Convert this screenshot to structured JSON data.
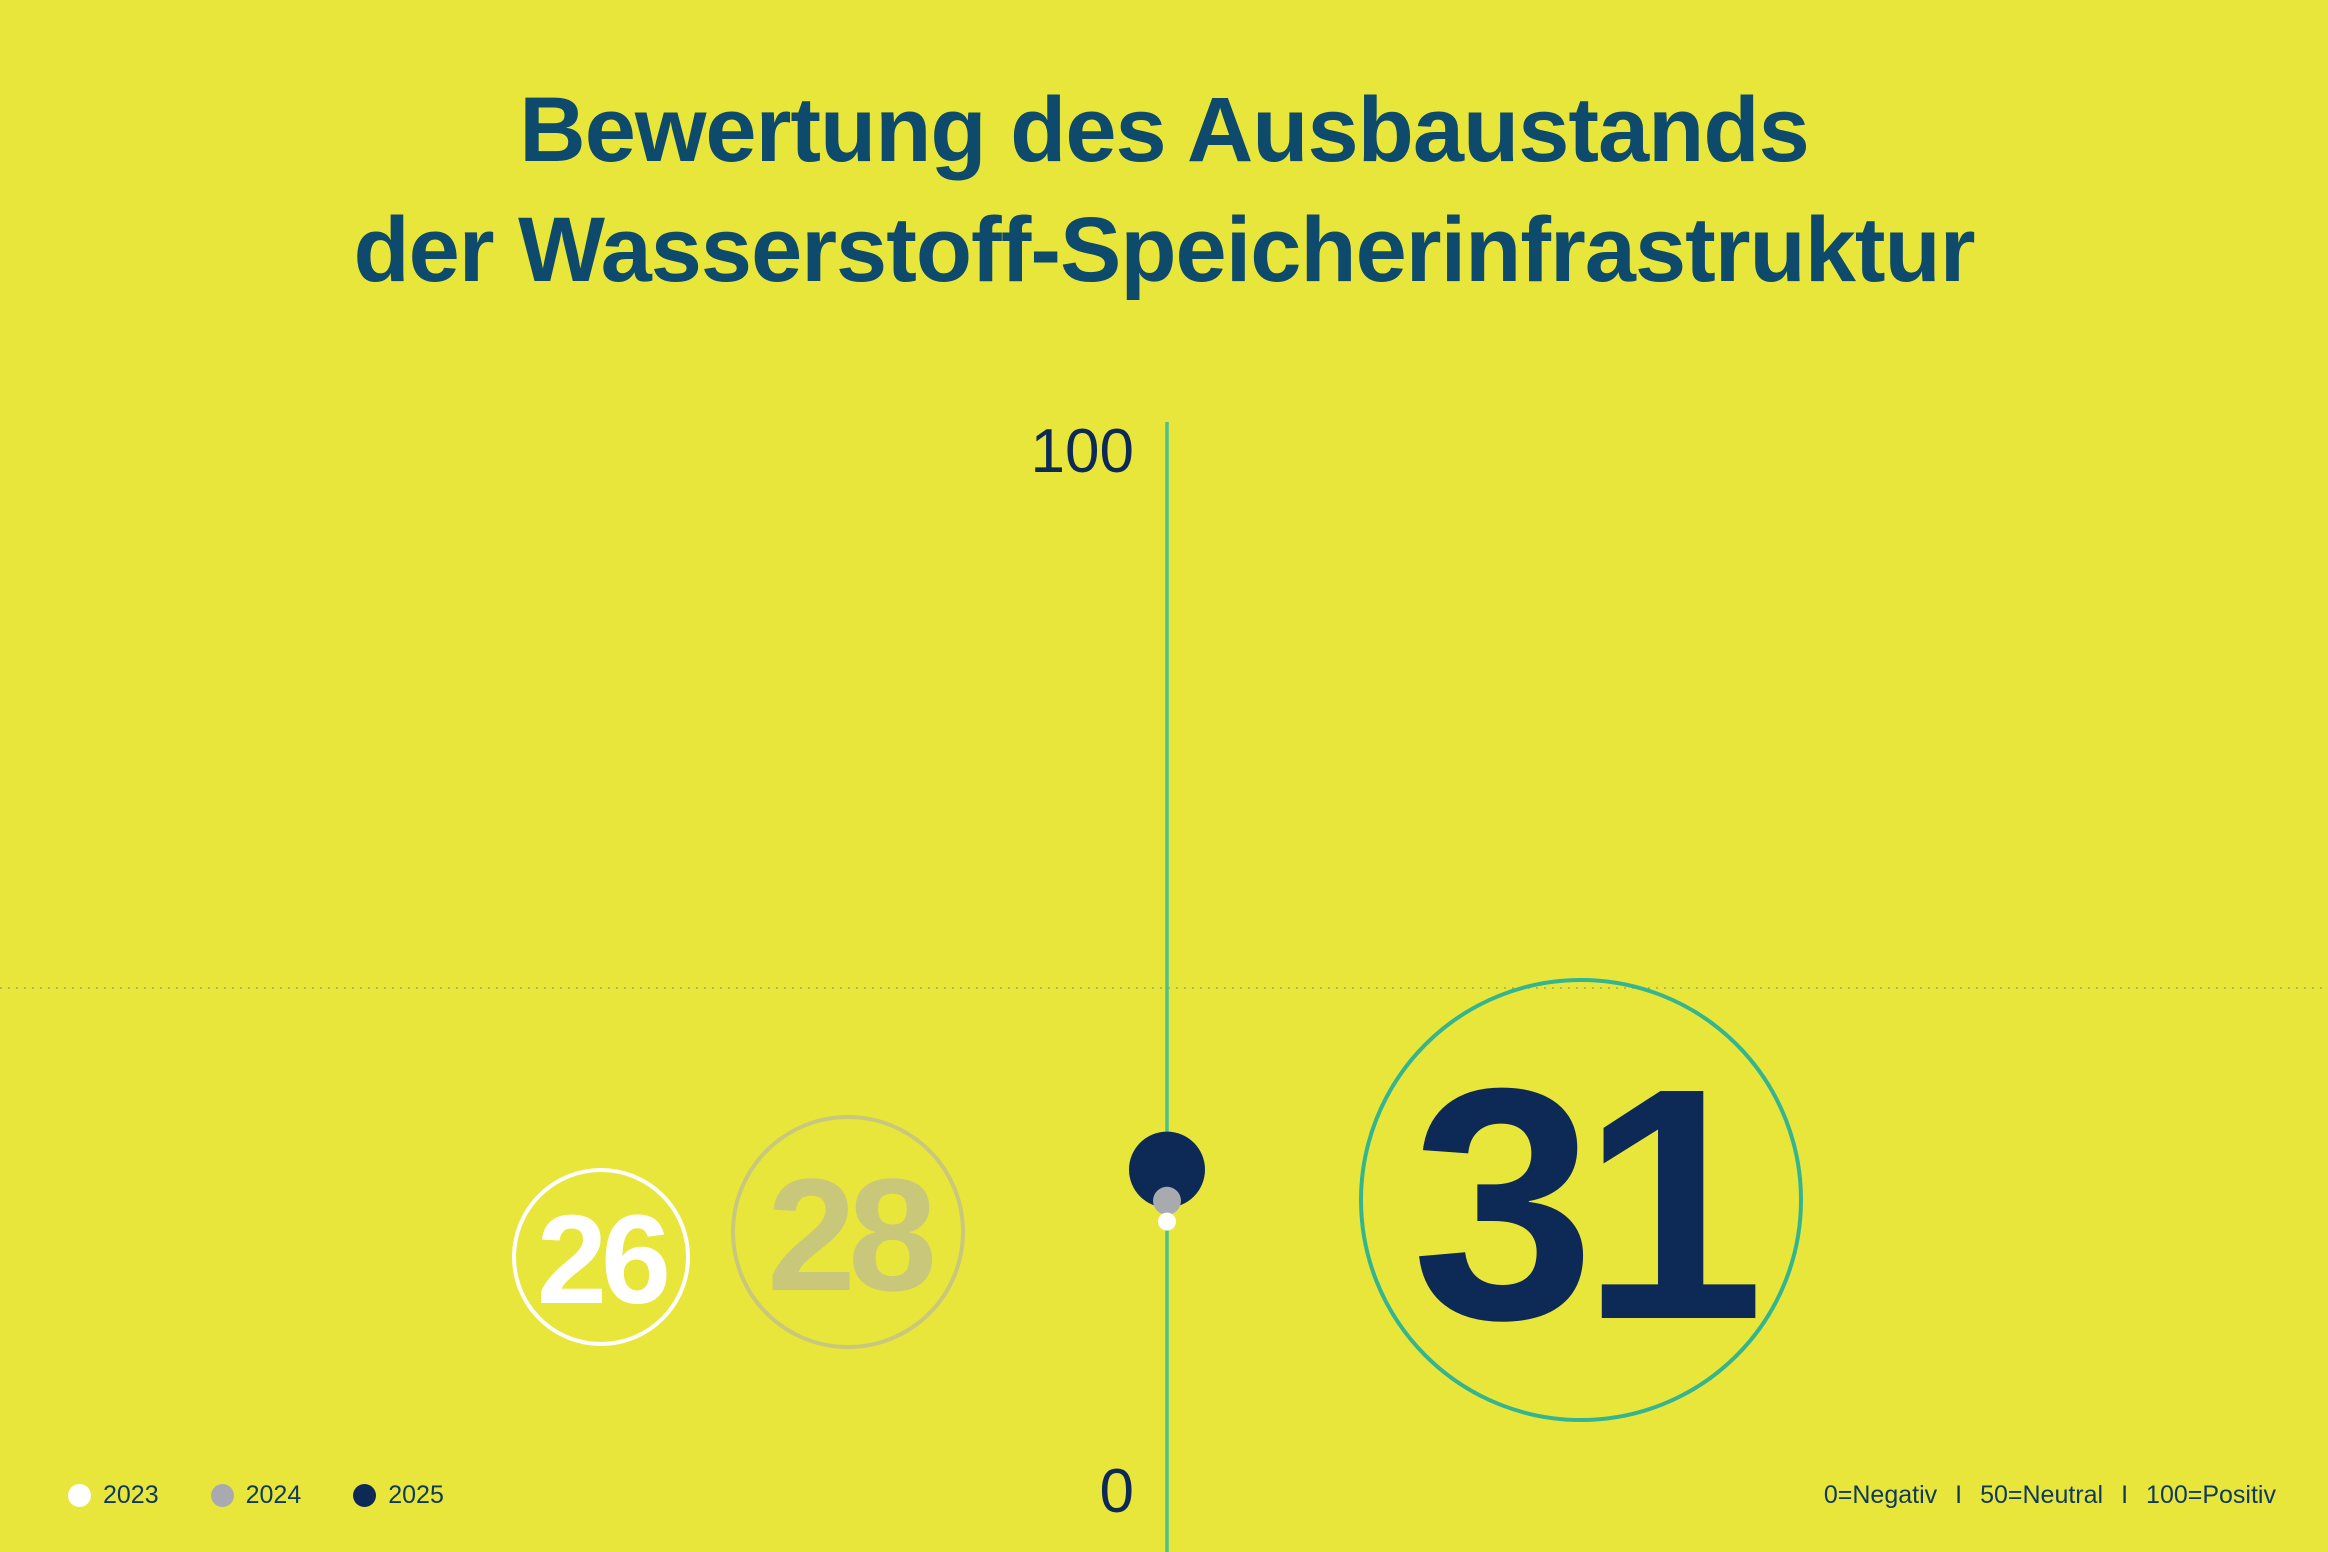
{
  "title": {
    "line1": "Bewertung des Ausbaustands",
    "line2": "der Wasserstoff-Speicherinfrastruktur"
  },
  "chart_data": {
    "type": "scatter",
    "title": "Bewertung des Ausbaustands der Wasserstoff-Speicherinfrastruktur",
    "ylim": [
      0,
      100
    ],
    "y_tick_labels": [
      "100",
      "0"
    ],
    "reference_line": 50,
    "series": [
      {
        "name": "2023",
        "value": 26,
        "label": "26",
        "color": "#ffffff"
      },
      {
        "name": "2024",
        "value": 28,
        "label": "28",
        "color": "#a9aab0"
      },
      {
        "name": "2025",
        "value": 31,
        "label": "31",
        "color": "#0c2a55"
      }
    ],
    "scale_note": [
      "0=Negativ",
      "50=Neutral",
      "100=Positiv"
    ],
    "scale_separator": "I",
    "colors": {
      "background": "#e9e63b",
      "axis": "#4ec08a",
      "title": "#0d4a6b",
      "label_2024": "#c9c87a",
      "ring_2024": "#c8c77c",
      "ring_2025": "#35b58f"
    }
  }
}
